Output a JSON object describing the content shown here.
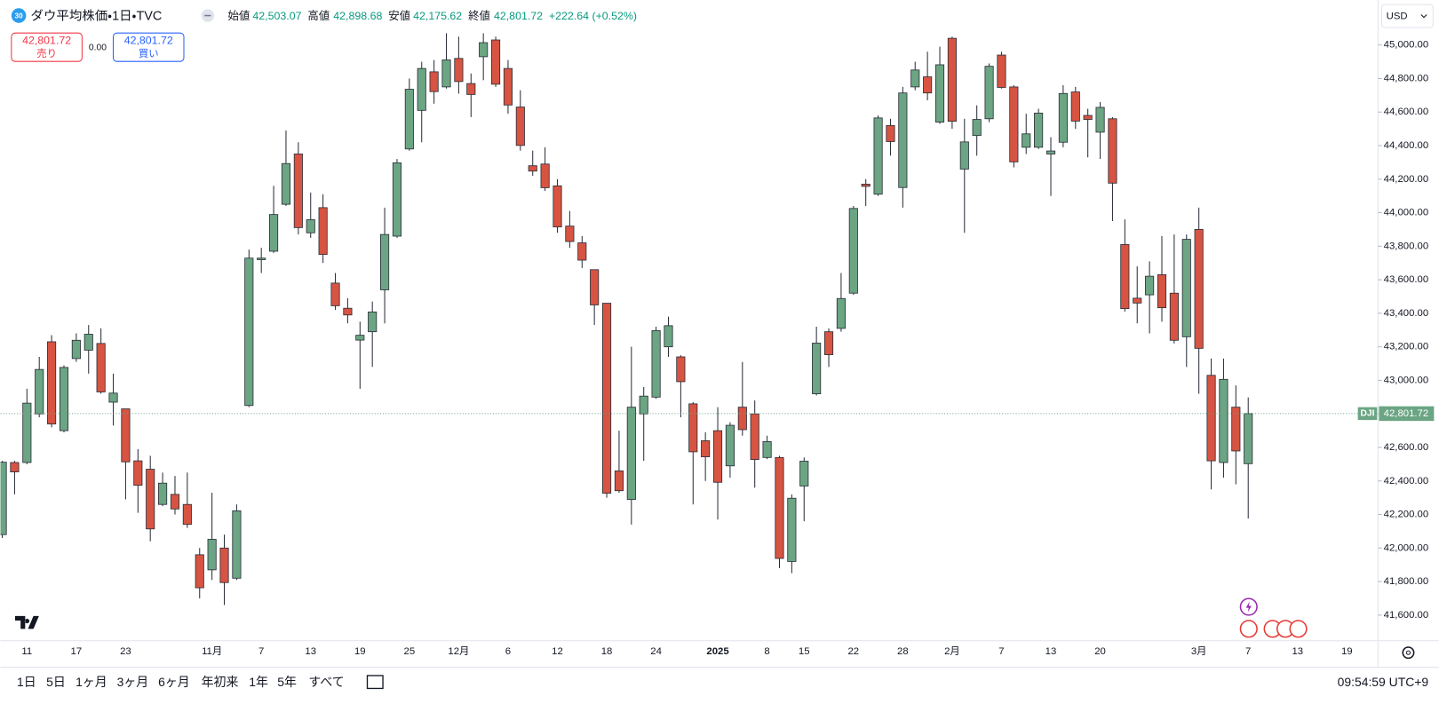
{
  "header": {
    "badge": "30",
    "symbol": "ダウ平均株価・1日・TVC",
    "ohlc": [
      {
        "label": "始値",
        "value": "42,503.07"
      },
      {
        "label": "高値",
        "value": "42,898.68"
      },
      {
        "label": "安値",
        "value": "42,175.62"
      },
      {
        "label": "終値",
        "value": "42,801.72"
      }
    ],
    "change": "+222.64 (+0.52%)"
  },
  "trade": {
    "sell_price": "42,801.72",
    "sell_label": "売り",
    "spread": "0.00",
    "buy_price": "42,801.72",
    "buy_label": "買い"
  },
  "currency": "USD",
  "chart_data": {
    "type": "candlestick",
    "categories": [
      null,
      null,
      "11",
      null,
      null,
      null,
      "17",
      null,
      null,
      null,
      "23",
      null,
      null,
      null,
      null,
      null,
      null,
      "11月",
      null,
      null,
      null,
      "7",
      null,
      null,
      null,
      "13",
      null,
      null,
      null,
      "19",
      null,
      null,
      null,
      "25",
      null,
      null,
      null,
      "12月",
      null,
      null,
      null,
      "6",
      null,
      null,
      null,
      "12",
      null,
      null,
      null,
      "18",
      null,
      null,
      null,
      "24",
      null,
      null,
      null,
      null,
      "2025",
      null,
      null,
      null,
      "8",
      null,
      null,
      "15",
      null,
      null,
      null,
      "22",
      null,
      null,
      null,
      "28",
      null,
      null,
      null,
      "2月",
      null,
      null,
      null,
      "7",
      null,
      null,
      null,
      "13",
      null,
      null,
      null,
      "20",
      null,
      null,
      null,
      null,
      null,
      null,
      null,
      "3月",
      null,
      null,
      null,
      "7",
      null,
      null,
      null,
      "13",
      null,
      null,
      null,
      "19",
      null
    ],
    "open": [
      42080,
      42510,
      42510,
      42800,
      43230,
      42700,
      43130,
      43180,
      43220,
      42870,
      42830,
      42520,
      42470,
      42260,
      42320,
      42260,
      41960,
      41870,
      42000,
      41820,
      42850,
      43720,
      43770,
      44050,
      44350,
      43880,
      44030,
      43580,
      43430,
      43240,
      43290,
      43540,
      43860,
      44380,
      44610,
      44840,
      44750,
      44920,
      44770,
      44930,
      45030,
      44860,
      44630,
      44280,
      44290,
      44160,
      43920,
      43820,
      43660,
      43460,
      42460,
      42290,
      42800,
      42900,
      43200,
      43140,
      42860,
      42640,
      42700,
      42490,
      42840,
      42800,
      42540,
      42540,
      41920,
      42370,
      42920,
      43290,
      43310,
      43520,
      44170,
      44110,
      44520,
      44150,
      44750,
      44810,
      44540,
      45040,
      44260,
      44460,
      44560,
      44940,
      44750,
      44390,
      44390,
      44350,
      44420,
      44720,
      44580,
      44480,
      44560,
      43810,
      43490,
      43510,
      43630,
      43520,
      43260,
      43900,
      43030,
      42510,
      42840,
      42503.07,
      null,
      null,
      null,
      null,
      null,
      null,
      null,
      null,
      null
    ],
    "high": [
      42520,
      42520,
      42950,
      43140,
      43270,
      43090,
      43280,
      43330,
      43310,
      43040,
      42830,
      42590,
      42550,
      42450,
      42430,
      42450,
      42000,
      42330,
      42080,
      42260,
      43780,
      43790,
      44160,
      44490,
      44420,
      44120,
      44110,
      43640,
      43490,
      43350,
      43470,
      44030,
      44320,
      44800,
      44900,
      44910,
      45070,
      45050,
      44830,
      45070,
      45050,
      44910,
      44730,
      44370,
      44390,
      44200,
      44010,
      43860,
      43660,
      43460,
      42700,
      43200,
      42960,
      43320,
      43380,
      43150,
      42870,
      42690,
      42840,
      42750,
      43110,
      42880,
      42670,
      42550,
      42320,
      42540,
      43320,
      43310,
      43640,
      44040,
      44200,
      44580,
      44560,
      44750,
      44900,
      44960,
      44990,
      45050,
      44560,
      44640,
      44890,
      44960,
      44760,
      44590,
      44620,
      44450,
      44760,
      44750,
      44620,
      44660,
      44570,
      43960,
      43680,
      43710,
      43860,
      43870,
      43870,
      44030,
      43130,
      43130,
      42970,
      42898.68,
      null,
      null,
      null,
      null,
      null,
      null,
      null,
      null,
      null
    ],
    "low": [
      42060,
      42320,
      42500,
      42780,
      42720,
      42690,
      43110,
      43040,
      42920,
      42730,
      42290,
      42210,
      42040,
      42250,
      42200,
      42120,
      41700,
      41810,
      41660,
      41810,
      42840,
      43640,
      43760,
      44040,
      43870,
      43850,
      43700,
      43420,
      43340,
      42950,
      43080,
      43340,
      43850,
      44370,
      44420,
      44650,
      44740,
      44710,
      44570,
      44790,
      44750,
      44590,
      44370,
      44220,
      44130,
      43880,
      43790,
      43670,
      43330,
      42300,
      42330,
      42140,
      42520,
      42890,
      43140,
      42780,
      42260,
      42400,
      42170,
      42420,
      42670,
      42360,
      42530,
      41880,
      41850,
      42160,
      42910,
      43080,
      43290,
      43510,
      44040,
      44100,
      44340,
      44030,
      44730,
      44670,
      44530,
      44500,
      43880,
      44340,
      44540,
      44740,
      44270,
      44350,
      44380,
      44100,
      44390,
      44500,
      44330,
      44320,
      43950,
      43410,
      43340,
      43280,
      43350,
      43220,
      43080,
      42920,
      42350,
      42420,
      42380,
      42175.62,
      null,
      null,
      null,
      null,
      null,
      null,
      null,
      null,
      null
    ],
    "close": [
      42512,
      42454,
      42864,
      43065,
      42740,
      43077,
      43239,
      43275,
      42931,
      42924,
      42514,
      42374,
      42114,
      42387,
      42233,
      42141,
      41763,
      42052,
      41794,
      42222,
      43729,
      43729,
      43989,
      44293,
      43911,
      43958,
      43751,
      43445,
      43390,
      43269,
      43408,
      43870,
      44297,
      44736,
      44860,
      44722,
      44911,
      44782,
      44705,
      45014,
      44766,
      44642,
      44401,
      44248,
      44149,
      43915,
      43828,
      43717,
      43450,
      42327,
      42342,
      42840,
      42906,
      43297,
      43326,
      42992,
      42574,
      42544,
      42392,
      42732,
      42706,
      42528,
      42635,
      41938,
      42297,
      42518,
      43222,
      43153,
      43488,
      44025,
      44157,
      44565,
      44424,
      44714,
      44851,
      44714,
      44882,
      44545,
      44422,
      44556,
      44873,
      44747,
      44303,
      44470,
      44594,
      44368,
      44711,
      44546,
      44556,
      44628,
      44176,
      43428,
      43461,
      43621,
      43433,
      43239,
      43841,
      43191,
      42520,
      43006,
      42579,
      42801.72,
      null,
      null,
      null,
      null,
      null,
      null,
      null,
      null,
      null
    ],
    "up_color": "#6ba583",
    "down_color": "#d75442",
    "wick_color": "#2a2e39",
    "ylim": [
      41458,
      45241
    ],
    "yticks": [
      {
        "value": 41600,
        "label": "41,600.00"
      },
      {
        "value": 41800,
        "label": "41,800.00"
      },
      {
        "value": 42000,
        "label": "42,000.00"
      },
      {
        "value": 42200,
        "label": "42,200.00"
      },
      {
        "value": 42400,
        "label": "42,400.00"
      },
      {
        "value": 42600,
        "label": "42,600.00"
      },
      {
        "value": 42800,
        "label": "42,800.00"
      },
      {
        "value": 43000,
        "label": "43,000.00"
      },
      {
        "value": 43200,
        "label": "43,200.00"
      },
      {
        "value": 43400,
        "label": "43,400.00"
      },
      {
        "value": 43600,
        "label": "43,600.00"
      },
      {
        "value": 43800,
        "label": "43,800.00"
      },
      {
        "value": 44000,
        "label": "44,000.00"
      },
      {
        "value": 44200,
        "label": "44,200.00"
      },
      {
        "value": 44400,
        "label": "44,400.00"
      },
      {
        "value": 44600,
        "label": "44,600.00"
      },
      {
        "value": 44800,
        "label": "44,800.00"
      },
      {
        "value": 45000,
        "label": "45,000.00"
      }
    ],
    "last_price": {
      "symbol": "DJI",
      "value": 42801.72,
      "label": "42,801.72"
    }
  },
  "toolbar": {
    "ranges": [
      "1日",
      "5日",
      "1ヶ月",
      "3ヶ月",
      "6ヶ月",
      "年初来",
      "1年",
      "5年",
      "すべて"
    ],
    "time": "09:54:59 UTC+9"
  }
}
